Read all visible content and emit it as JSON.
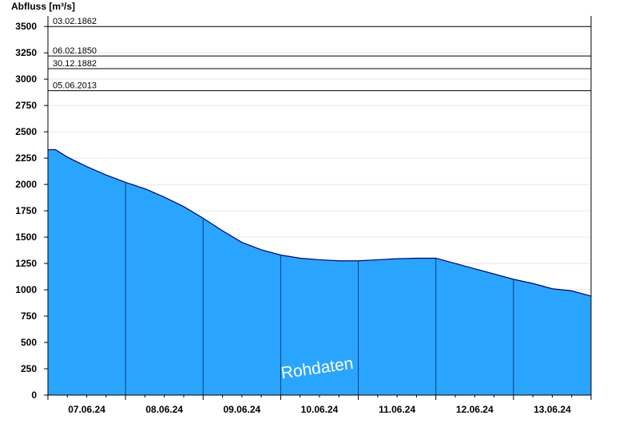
{
  "chart_data": {
    "type": "area",
    "ylabel": "Abfluss [m³/s]",
    "xlabel": "",
    "ylim": [
      0,
      3600
    ],
    "yticks": [
      0,
      250,
      500,
      750,
      1000,
      1250,
      1500,
      1750,
      2000,
      2250,
      2500,
      2750,
      3000,
      3250,
      3500
    ],
    "xlim_days": [
      6.5,
      13.5
    ],
    "day_labels": [
      {
        "day": 7,
        "label": "07.06.24"
      },
      {
        "day": 8,
        "label": "08.06.24"
      },
      {
        "day": 9,
        "label": "09.06.24"
      },
      {
        "day": 10,
        "label": "10.06.24"
      },
      {
        "day": 11,
        "label": "11.06.24"
      },
      {
        "day": 12,
        "label": "12.06.24"
      },
      {
        "day": 13,
        "label": "13.06.24"
      }
    ],
    "reference_lines": [
      {
        "label": "03.02.1862",
        "value": 3500
      },
      {
        "label": "06.02.1850",
        "value": 3220
      },
      {
        "label": "30.12.1882",
        "value": 3100
      },
      {
        "label": "05.06.2013",
        "value": 2890
      }
    ],
    "series": [
      {
        "x_day": [
          6.5,
          6.6,
          6.75,
          7.0,
          7.25,
          7.5,
          7.75,
          8.0,
          8.25,
          8.5,
          8.75,
          9.0,
          9.25,
          9.5,
          9.75,
          10.0,
          10.25,
          10.5,
          10.75,
          11.0,
          11.25,
          11.5,
          11.75,
          12.0,
          12.25,
          12.5,
          12.75,
          13.0,
          13.25,
          13.5
        ],
        "y": [
          2330,
          2330,
          2260,
          2170,
          2090,
          2020,
          1960,
          1880,
          1790,
          1680,
          1560,
          1450,
          1380,
          1330,
          1300,
          1285,
          1275,
          1275,
          1285,
          1295,
          1300,
          1300,
          1250,
          1200,
          1150,
          1100,
          1060,
          1010,
          990,
          940
        ]
      }
    ],
    "colors": {
      "area_fill": "#2aa5ff",
      "area_line": "#00007a",
      "day_separator": "#0a3f7a"
    },
    "grid": "horizontal",
    "annotation": "Rohdaten"
  }
}
